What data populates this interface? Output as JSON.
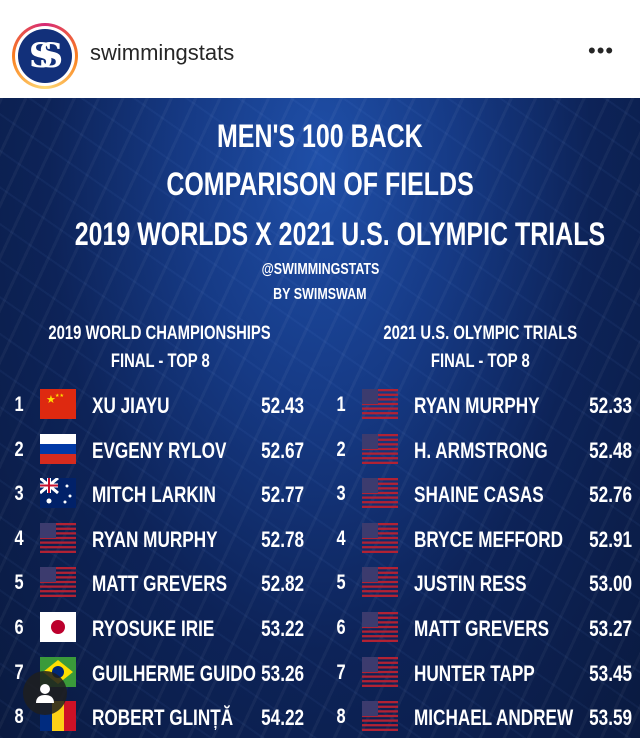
{
  "header": {
    "username": "swimmingstats",
    "more_icon": "more-horizontal-icon"
  },
  "post": {
    "title_lines": [
      "MEN'S 100 BACK",
      "COMPARISON OF FIELDS",
      "2019 WORLDS X 2021 U.S. OLYMPIC TRIALS"
    ],
    "handle": "@SWIMMINGSTATS",
    "byline": "BY SWIMSWAM",
    "left": {
      "heading": "2019 WORLD CHAMPIONSHIPS",
      "subheading": "FINAL - TOP 8",
      "rows": [
        {
          "rank": "1",
          "flag": "china",
          "name": "XU JIAYU",
          "time": "52.43"
        },
        {
          "rank": "2",
          "flag": "russia",
          "name": "EVGENY RYLOV",
          "time": "52.67"
        },
        {
          "rank": "3",
          "flag": "australia",
          "name": "MITCH LARKIN",
          "time": "52.77"
        },
        {
          "rank": "4",
          "flag": "usa",
          "name": "RYAN MURPHY",
          "time": "52.78"
        },
        {
          "rank": "5",
          "flag": "usa",
          "name": "MATT GREVERS",
          "time": "52.82"
        },
        {
          "rank": "6",
          "flag": "japan",
          "name": "RYOSUKE IRIE",
          "time": "53.22"
        },
        {
          "rank": "7",
          "flag": "brazil",
          "name": "GUILHERME GUIDO",
          "time": "53.26"
        },
        {
          "rank": "8",
          "flag": "romania",
          "name": "ROBERT GLINȚĂ",
          "time": "54.22"
        }
      ]
    },
    "right": {
      "heading": "2021 U.S. OLYMPIC TRIALS",
      "subheading": "FINAL - TOP 8",
      "rows": [
        {
          "rank": "1",
          "flag": "usa",
          "name": "RYAN MURPHY",
          "time": "52.33"
        },
        {
          "rank": "2",
          "flag": "usa",
          "name": "H. ARMSTRONG",
          "time": "52.48"
        },
        {
          "rank": "3",
          "flag": "usa",
          "name": "SHAINE CASAS",
          "time": "52.76"
        },
        {
          "rank": "4",
          "flag": "usa",
          "name": "BRYCE MEFFORD",
          "time": "52.91"
        },
        {
          "rank": "5",
          "flag": "usa",
          "name": "JUSTIN RESS",
          "time": "53.00"
        },
        {
          "rank": "6",
          "flag": "usa",
          "name": "MATT GREVERS",
          "time": "53.27"
        },
        {
          "rank": "7",
          "flag": "usa",
          "name": "HUNTER TAPP",
          "time": "53.45"
        },
        {
          "rank": "8",
          "flag": "usa",
          "name": "MICHAEL ANDREW",
          "time": "53.59"
        }
      ]
    },
    "tags_icon": "user-tag-icon"
  }
}
